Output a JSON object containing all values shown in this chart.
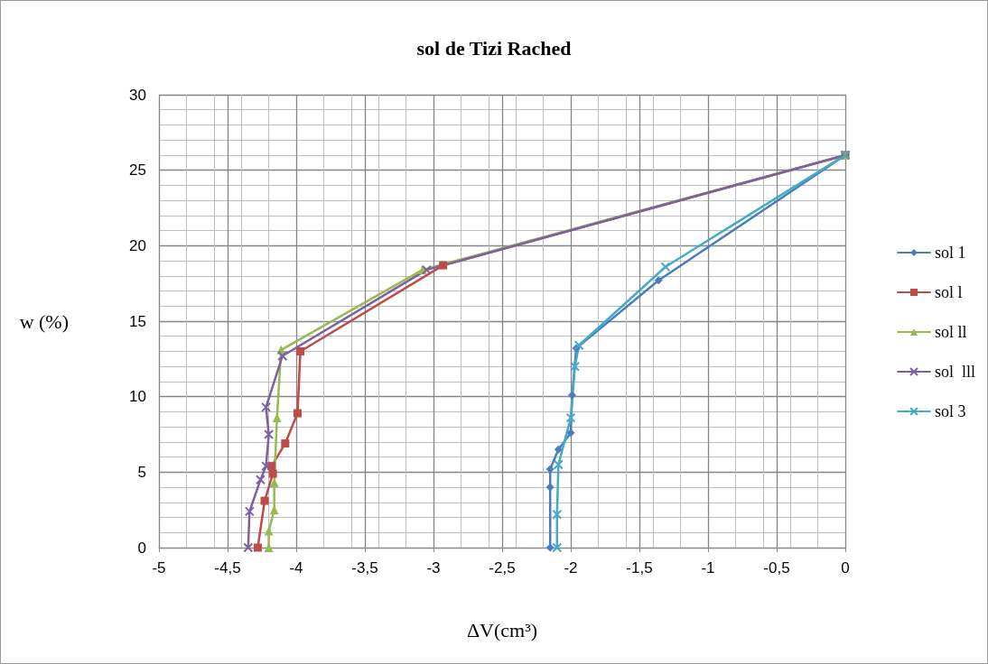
{
  "chart_data": {
    "type": "line",
    "title": "sol de Tizi Rached",
    "xlabel": "ΔV(cm³)",
    "ylabel": "w (%)",
    "xlim": [
      -5,
      0
    ],
    "xticks": [
      -5,
      {
        "value": -4.5,
        "label": "-4,5"
      },
      -4,
      {
        "value": -3.5,
        "label": "-3,5"
      },
      -3,
      {
        "value": -2.5,
        "label": "-2,5"
      },
      -2,
      {
        "value": -1.5,
        "label": "-1,5"
      },
      -1,
      {
        "value": -0.5,
        "label": "-0,5"
      },
      0
    ],
    "ylim": [
      0,
      30
    ],
    "yticks": [
      0,
      5,
      10,
      15,
      20,
      25,
      30
    ],
    "grid": true,
    "legend": "right",
    "line_style": "solid",
    "series": [
      {
        "name": "sol 1",
        "color": "#4a7ebb",
        "marker": "diamond",
        "x": [
          0,
          -1.36,
          -1.96,
          -1.99,
          -2.0,
          -2.09,
          -2.15,
          -2.15,
          -2.15
        ],
        "values": [
          26,
          17.7,
          13.2,
          10.1,
          7.6,
          6.5,
          5.2,
          4.0,
          0
        ]
      },
      {
        "name": "sol l",
        "color": "#be4b48",
        "marker": "square",
        "x": [
          0,
          -2.93,
          -3.97,
          -3.99,
          -4.08,
          -4.18,
          -4.17,
          -4.23,
          -4.28
        ],
        "values": [
          26,
          18.7,
          13.0,
          8.9,
          6.9,
          5.4,
          4.9,
          3.1,
          0
        ]
      },
      {
        "name": "sol ll",
        "color": "#98b954",
        "marker": "triangle",
        "x": [
          0,
          -3.08,
          -4.11,
          -4.14,
          -4.16,
          -4.16,
          -4.2,
          -4.2
        ],
        "values": [
          26,
          18.4,
          13.1,
          8.6,
          4.3,
          2.5,
          1.1,
          0
        ]
      },
      {
        "name": "sol  lll",
        "color": "#7d60a0",
        "marker": "cross",
        "x": [
          0,
          -3.05,
          -4.1,
          -4.22,
          -4.2,
          -4.22,
          -4.26,
          -4.34,
          -4.35
        ],
        "values": [
          26,
          18.4,
          12.7,
          9.3,
          7.5,
          5.4,
          4.5,
          2.4,
          0
        ]
      },
      {
        "name": "sol 3",
        "color": "#46aac5",
        "marker": "cross",
        "x": [
          0,
          -1.31,
          -1.94,
          -1.97,
          -2.0,
          -2.09,
          -2.1,
          -2.1
        ],
        "values": [
          26,
          18.6,
          13.4,
          12.0,
          8.6,
          5.5,
          2.2,
          0
        ]
      }
    ]
  }
}
